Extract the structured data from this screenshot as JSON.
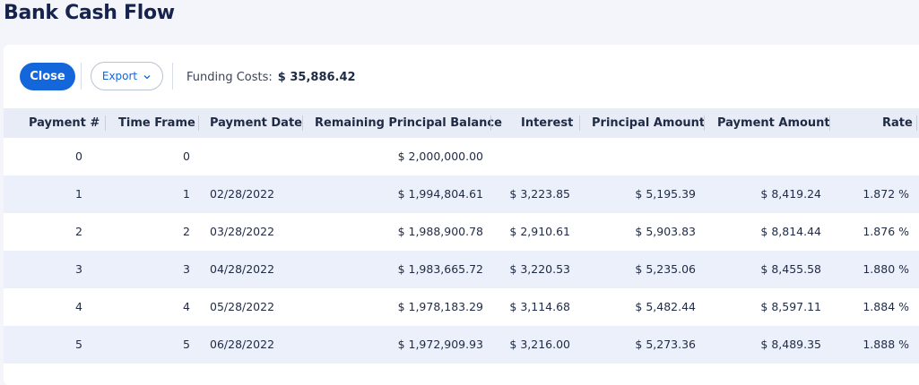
{
  "page": {
    "title": "Bank Cash Flow"
  },
  "toolbar": {
    "close_label": "Close",
    "export_label": "Export",
    "funding_label": "Funding Costs:",
    "funding_value": "$ 35,886.42"
  },
  "table": {
    "columns": [
      "Payment #",
      "Time Frame",
      "Payment Date",
      "Remaining Principal Balance",
      "Interest",
      "Principal Amount",
      "Payment Amount",
      "Rate"
    ],
    "rows": [
      [
        "0",
        "0",
        "",
        "$ 2,000,000.00",
        "",
        "",
        "",
        ""
      ],
      [
        "1",
        "1",
        "02/28/2022",
        "$ 1,994,804.61",
        "$ 3,223.85",
        "$ 5,195.39",
        "$ 8,419.24",
        "1.872 %"
      ],
      [
        "2",
        "2",
        "03/28/2022",
        "$ 1,988,900.78",
        "$ 2,910.61",
        "$ 5,903.83",
        "$ 8,814.44",
        "1.876 %"
      ],
      [
        "3",
        "3",
        "04/28/2022",
        "$ 1,983,665.72",
        "$ 3,220.53",
        "$ 5,235.06",
        "$ 8,455.58",
        "1.880 %"
      ],
      [
        "4",
        "4",
        "05/28/2022",
        "$ 1,978,183.29",
        "$ 3,114.68",
        "$ 5,482.44",
        "$ 8,597.11",
        "1.884 %"
      ],
      [
        "5",
        "5",
        "06/28/2022",
        "$ 1,972,909.93",
        "$ 3,216.00",
        "$ 5,273.36",
        "$ 8,489.35",
        "1.888 %"
      ]
    ]
  },
  "colors": {
    "accent": "#1466db",
    "header_bg": "#e8ecf6",
    "alt_row": "#ecf0fa",
    "title": "#15234d"
  },
  "icons": {
    "export_dropdown": "chevron-down-icon"
  }
}
